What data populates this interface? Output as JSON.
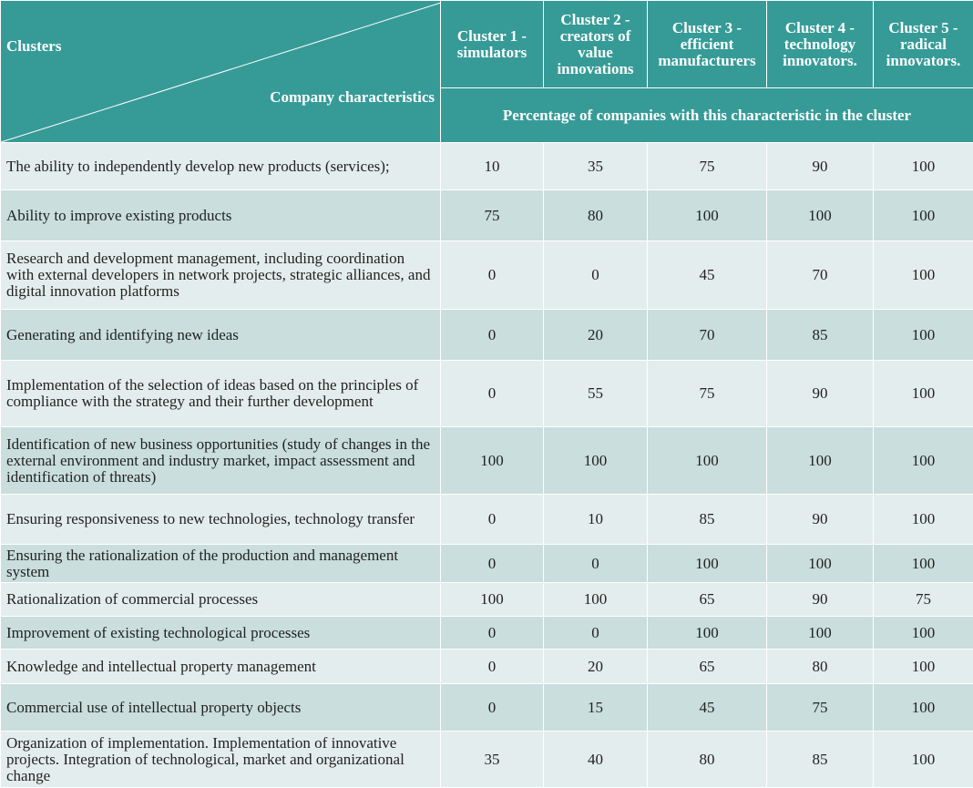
{
  "header": {
    "corner_top": "Clusters",
    "corner_bottom": "Company characteristics",
    "clusters": [
      "Cluster 1 - simulators",
      "Cluster 2 - creators of value innovations",
      "Cluster 3 - efficient manufacturers",
      "Cluster 4 - technology innovators.",
      "Cluster 5 - radical innovators."
    ],
    "subheader": "Percentage of companies with this characteristic in the cluster"
  },
  "rows": [
    {
      "label": "The ability to independently develop new products (services);",
      "values": [
        "10",
        "35",
        "75",
        "90",
        "100"
      ]
    },
    {
      "label": "Ability to improve existing products",
      "values": [
        "75",
        "80",
        "100",
        "100",
        "100"
      ]
    },
    {
      "label": "Research and development management, including coordination with external developers in network projects, strategic alliances, and digital innovation platforms",
      "values": [
        "0",
        "0",
        "45",
        "70",
        "100"
      ]
    },
    {
      "label": "Generating and identifying new ideas",
      "values": [
        "0",
        "20",
        "70",
        "85",
        "100"
      ]
    },
    {
      "label": "Implementation of the selection of ideas based on the principles of compliance with the strategy and their further development",
      "values": [
        "0",
        "55",
        "75",
        "90",
        "100"
      ]
    },
    {
      "label": "Identification of new business opportunities (study of changes in the external environment and industry market, impact assessment and identification of threats)",
      "values": [
        "100",
        "100",
        "100",
        "100",
        "100"
      ]
    },
    {
      "label": "Ensuring responsiveness to new technologies, technology transfer",
      "values": [
        "0",
        "10",
        "85",
        "90",
        "100"
      ]
    },
    {
      "label": "Ensuring the rationalization of the production and management system",
      "values": [
        "0",
        "0",
        "100",
        "100",
        "100"
      ]
    },
    {
      "label": "Rationalization of commercial processes",
      "values": [
        "100",
        "100",
        "65",
        "90",
        "75"
      ]
    },
    {
      "label": "Improvement of existing technological processes",
      "values": [
        "0",
        "0",
        "100",
        "100",
        "100"
      ]
    },
    {
      "label": "Knowledge and intellectual property management",
      "values": [
        "0",
        "20",
        "65",
        "80",
        "100"
      ]
    },
    {
      "label": "Commercial use of intellectual property objects",
      "values": [
        "0",
        "15",
        "45",
        "75",
        "100"
      ]
    },
    {
      "label": "Organization of implementation. Implementation of innovative projects. Integration of technological, market and organizational change",
      "values": [
        "35",
        "40",
        "80",
        "85",
        "100"
      ]
    }
  ],
  "colors": {
    "header_bg": "#369b97",
    "row_light": "#e4eded",
    "row_dark": "#c9dedd"
  }
}
